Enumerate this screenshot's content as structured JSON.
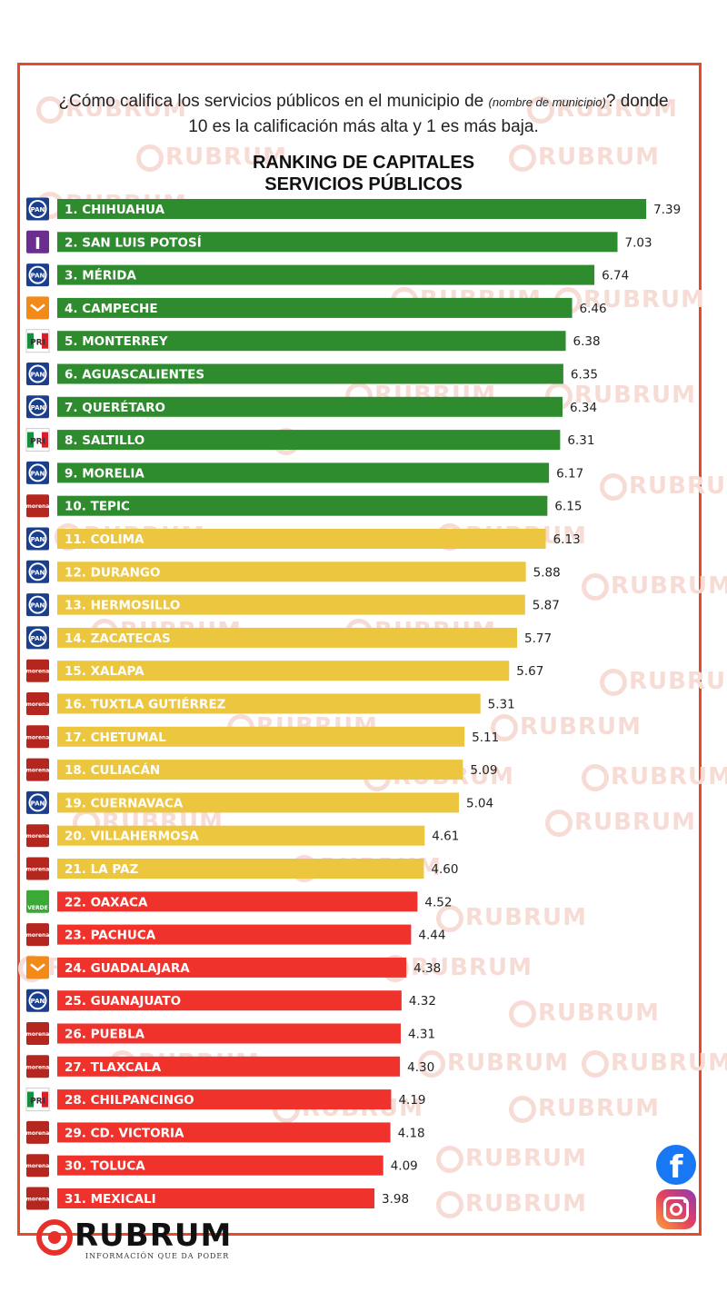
{
  "question": {
    "part1": "¿Cómo califica los servicios públicos en el municipio de ",
    "italic": "(nombre de municipio)",
    "part2": "? donde 10 es la calificación más alta y 1 es más baja."
  },
  "chart_data": {
    "type": "bar",
    "orientation": "horizontal",
    "title": "RANKING DE CAPITALES",
    "subtitle": "SERVICIOS PÚBLICOS",
    "xlabel": "",
    "ylabel": "",
    "xlim": [
      0,
      10
    ],
    "grid": false,
    "legend": "none",
    "colors": {
      "high": "#2e8b2e",
      "mid": "#ecc63e",
      "low": "#f0322d"
    },
    "categories": [
      "1. CHIHUAHUA",
      "2. SAN LUIS POTOSÍ",
      "3. MÉRIDA",
      "4. CAMPECHE",
      "5. MONTERREY",
      "6. AGUASCALIENTES",
      "7. QUERÉTARO",
      "8. SALTILLO",
      "9. MORELIA",
      "10. TEPIC",
      "11. COLIMA",
      "12. DURANGO",
      "13. HERMOSILLO",
      "14. ZACATECAS",
      "15. XALAPA",
      "16. TUXTLA GUTIÉRREZ",
      "17. CHETUMAL",
      "18. CULIACÁN",
      "19. CUERNAVACA",
      "20. VILLAHERMOSA",
      "21. LA PAZ",
      "22. OAXACA",
      "23. PACHUCA",
      "24. GUADALAJARA",
      "25. GUANAJUATO",
      "26. PUEBLA",
      "27. TLAXCALA",
      "28. CHILPANCINGO",
      "29. CD. VICTORIA",
      "30. TOLUCA",
      "31. MEXICALI"
    ],
    "values": [
      7.39,
      7.03,
      6.74,
      6.46,
      6.38,
      6.35,
      6.34,
      6.31,
      6.17,
      6.15,
      6.13,
      5.88,
      5.87,
      5.77,
      5.67,
      5.31,
      5.11,
      5.09,
      5.04,
      4.61,
      4.6,
      4.52,
      4.44,
      4.38,
      4.32,
      4.31,
      4.3,
      4.19,
      4.18,
      4.09,
      3.98
    ],
    "value_labels": [
      "7.39",
      "7.03",
      "6.74",
      "6.46",
      "6.38",
      "6.35",
      "6.34",
      "6.31",
      "6.17",
      "6.15",
      "6.13",
      "5.88",
      "5.87",
      "5.77",
      "5.67",
      "5.31",
      "5.11",
      "5.09",
      "5.04",
      "4.61",
      "4.60",
      "4.52",
      "4.44",
      "4.38",
      "4.32",
      "4.31",
      "4.30",
      "4.19",
      "4.18",
      "4.09",
      "3.98"
    ],
    "tiers": [
      "high",
      "high",
      "high",
      "high",
      "high",
      "high",
      "high",
      "high",
      "high",
      "high",
      "mid",
      "mid",
      "mid",
      "mid",
      "mid",
      "mid",
      "mid",
      "mid",
      "mid",
      "mid",
      "mid",
      "low",
      "low",
      "low",
      "low",
      "low",
      "low",
      "low",
      "low",
      "low",
      "low"
    ],
    "party_logos": [
      "PAN",
      "I",
      "PAN",
      "MC",
      "PRI",
      "PAN",
      "PAN",
      "PRI",
      "PAN",
      "morena",
      "PAN",
      "PAN",
      "PAN",
      "PAN",
      "morena",
      "morena",
      "morena",
      "morena",
      "PAN",
      "morena",
      "morena",
      "VERDE",
      "morena",
      "MC",
      "PAN",
      "morena",
      "morena",
      "PRI",
      "morena",
      "morena",
      "morena"
    ]
  },
  "watermark": {
    "text": "RUBRUM"
  },
  "brand": {
    "name": "RUBRUM",
    "tagline": "INFORMACIÓN QUE DA PODER"
  },
  "social": {
    "facebook_icon": "facebook-icon",
    "facebook_glyph": "f",
    "instagram_icon": "instagram-icon"
  }
}
